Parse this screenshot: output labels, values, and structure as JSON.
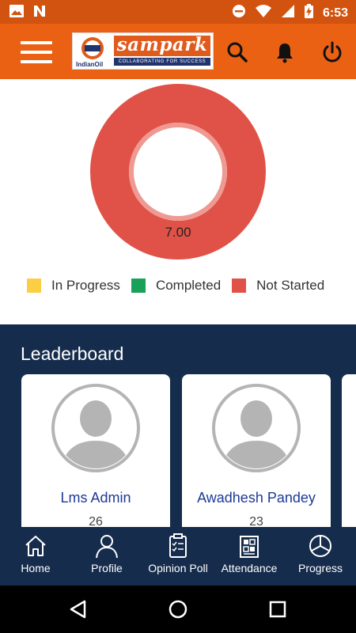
{
  "status_bar": {
    "time": "6:53",
    "left_icons": [
      "image-icon",
      "news-app-icon"
    ],
    "right_icons": [
      "do-not-disturb-icon",
      "wifi-icon",
      "cellular-signal-icon",
      "battery-charging-icon"
    ]
  },
  "app_bar": {
    "logo": {
      "brand": "sampark",
      "tagline": "COLLABORATING FOR SUCCESS",
      "company": "IndianOil"
    },
    "icons": [
      "menu-icon",
      "search-icon",
      "bell-icon",
      "power-icon"
    ],
    "colors": {
      "bar": "#ea6114",
      "status": "#d2520f"
    }
  },
  "progress_chart": {
    "center_value": "7.00",
    "legend": [
      {
        "label": "In Progress",
        "color": "#fcce44"
      },
      {
        "label": "Completed",
        "color": "#19a15a"
      },
      {
        "label": "Not Started",
        "color": "#e05247"
      }
    ]
  },
  "chart_data": {
    "type": "pie",
    "categories": [
      "In Progress",
      "Completed",
      "Not Started"
    ],
    "values": [
      0,
      0,
      7
    ],
    "colors": [
      "#fcce44",
      "#19a15a",
      "#e05247"
    ],
    "center_label": "7.00",
    "legend_position": "bottom"
  },
  "leaderboard": {
    "title": "Leaderboard",
    "entries": [
      {
        "name": "Lms Admin",
        "score": "26"
      },
      {
        "name": "Awadhesh Pandey",
        "score": "23"
      }
    ]
  },
  "bottom_nav": {
    "items": [
      {
        "label": "Home",
        "icon": "home-icon"
      },
      {
        "label": "Profile",
        "icon": "profile-icon"
      },
      {
        "label": "Opinion Poll",
        "icon": "poll-icon"
      },
      {
        "label": "Attendance",
        "icon": "attendance-icon"
      },
      {
        "label": "Progress",
        "icon": "pie-chart-icon"
      }
    ],
    "background": "#152c4c"
  },
  "system_nav": {
    "buttons": [
      "back-icon",
      "home-circle-icon",
      "recents-icon"
    ]
  }
}
